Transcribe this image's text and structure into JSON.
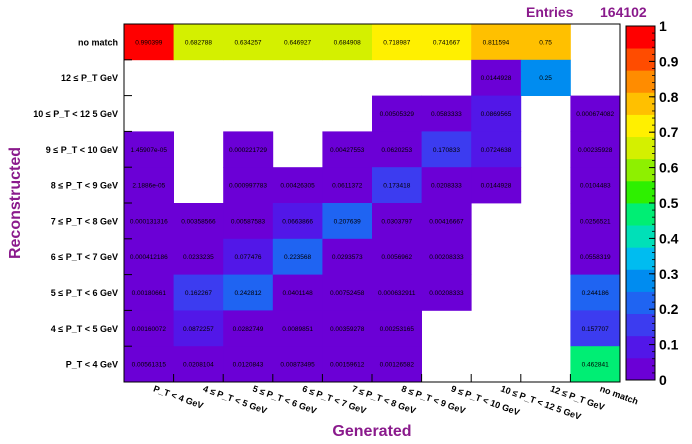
{
  "stats": {
    "label": "Entries",
    "value": "164102"
  },
  "chart_data": {
    "type": "heatmap",
    "title": "",
    "xlabel": "Generated",
    "ylabel": "Reconstructed",
    "x_categories": [
      "P_T < 4 GeV",
      "4 ≤ P_T < 5 GeV",
      "5 ≤ P_T < 6 GeV",
      "6 ≤ P_T < 7 GeV",
      "7 ≤ P_T < 8 GeV",
      "8 ≤ P_T < 9 GeV",
      "9 ≤ P_T < 10 GeV",
      "10 ≤ P_T < 12 5 GeV",
      "12 ≤ P_T GeV",
      "no match"
    ],
    "y_categories": [
      "no match",
      "12 ≤ P_T GeV",
      "10 ≤ P_T < 12 5 GeV",
      "9 ≤ P_T < 10 GeV",
      "8 ≤ P_T < 9 GeV",
      "7 ≤ P_T < 8 GeV",
      "6 ≤ P_T < 7 GeV",
      "5 ≤ P_T < 6 GeV",
      "4 ≤ P_T < 5 GeV",
      "P_T < 4 GeV"
    ],
    "values": [
      [
        0.990399,
        0.682788,
        0.634257,
        0.646927,
        0.684908,
        0.718987,
        0.741667,
        0.811594,
        0.75,
        null
      ],
      [
        null,
        null,
        null,
        null,
        null,
        null,
        null,
        0.0144928,
        0.25,
        null
      ],
      [
        null,
        null,
        null,
        null,
        null,
        0.00505329,
        0.0583333,
        0.0869565,
        null,
        0.000674082
      ],
      [
        1.45907e-05,
        null,
        0.000221729,
        null,
        0.00427553,
        0.0620253,
        0.170833,
        0.0724638,
        null,
        0.00235928
      ],
      [
        2.1886e-05,
        null,
        0.000997783,
        0.00426305,
        0.0611372,
        0.173418,
        0.0208333,
        0.0144928,
        null,
        0.0104483
      ],
      [
        0.000131316,
        0.00358566,
        0.00587583,
        0.0663866,
        0.207639,
        0.0303797,
        0.00416667,
        null,
        null,
        0.0256521
      ],
      [
        0.000412186,
        0.0233235,
        0.077476,
        0.223568,
        0.0293573,
        0.0056962,
        0.00208333,
        null,
        null,
        0.0558319
      ],
      [
        0.00180661,
        0.162267,
        0.242812,
        0.0401148,
        0.00752458,
        0.000632911,
        0.00208333,
        null,
        null,
        0.244186
      ],
      [
        0.00160072,
        0.0872257,
        0.0282749,
        0.0089851,
        0.00359278,
        0.00253165,
        null,
        null,
        null,
        0.157707
      ],
      [
        0.00561315,
        0.0208104,
        0.0120843,
        0.00873495,
        0.00159612,
        0.00126582,
        null,
        null,
        null,
        0.462841
      ]
    ],
    "value_labels": [
      [
        "0.990399",
        "0.682788",
        "0.634257",
        "0.646927",
        "0.684908",
        "0.718987",
        "0.741667",
        "0.811594",
        "0.75",
        ""
      ],
      [
        "",
        "",
        "",
        "",
        "",
        "",
        "",
        "0.0144928",
        "0.25",
        ""
      ],
      [
        "",
        "",
        "",
        "",
        "",
        "0.00505329",
        "0.0583333",
        "0.0869565",
        "",
        "0.000674082"
      ],
      [
        "1.45907e-05",
        "",
        "0.000221729",
        "",
        "0.00427553",
        "0.0620253",
        "0.170833",
        "0.0724638",
        "",
        "0.00235928"
      ],
      [
        "2.1886e-05",
        "",
        "0.000997783",
        "0.00426305",
        "0.0611372",
        "0.173418",
        "0.0208333",
        "0.0144928",
        "",
        "0.0104483"
      ],
      [
        "0.000131316",
        "0.00358566",
        "0.00587583",
        "0.0663866",
        "0.207639",
        "0.0303797",
        "0.00416667",
        "",
        "",
        "0.0256521"
      ],
      [
        "0.000412186",
        "0.0233235",
        "0.077476",
        "0.223568",
        "0.0293573",
        "0.0056962",
        "0.00208333",
        "",
        "",
        "0.0558319"
      ],
      [
        "0.00180661",
        "0.162267",
        "0.242812",
        "0.0401148",
        "0.00752458",
        "0.000632911",
        "0.00208333",
        "",
        "",
        "0.244186"
      ],
      [
        "0.00160072",
        "0.0872257",
        "0.0282749",
        "0.0089851",
        "0.00359278",
        "0.00253165",
        "",
        "",
        "",
        "0.157707"
      ],
      [
        "0.00561315",
        "0.0208104",
        "0.0120843",
        "0.00873495",
        "0.00159612",
        "0.00126582",
        "",
        "",
        "",
        "0.462841"
      ]
    ],
    "zlim": [
      0,
      1
    ],
    "colorbar_ticks": [
      "0",
      "0.1",
      "0.2",
      "0.3",
      "0.4",
      "0.5",
      "0.6",
      "0.7",
      "0.8",
      "0.9",
      "1"
    ],
    "colorbar_tick_values": [
      0,
      0.1,
      0.2,
      0.3,
      0.4,
      0.5,
      0.6,
      0.7,
      0.8,
      0.9,
      1
    ],
    "palette": [
      "#6b00d6",
      "#5217e8",
      "#3c3cf0",
      "#1f64f2",
      "#008cf0",
      "#00bcf0",
      "#00e0b8",
      "#00ee74",
      "#2ef000",
      "#8ef000",
      "#d4f000",
      "#fff000",
      "#ffc000",
      "#ff8c00",
      "#ff4c00",
      "#ff0000"
    ],
    "colors": {
      "axis_title": "#8a1a8c",
      "stats": "#8a1a8c"
    }
  }
}
